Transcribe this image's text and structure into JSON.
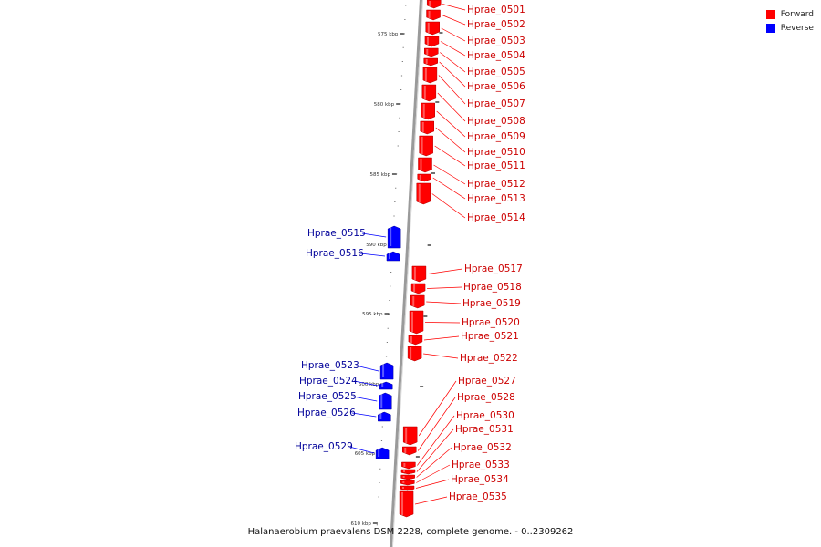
{
  "caption": "Halanaerobium praevalens DSM 2228, complete genome. - 0..2309262",
  "legend": [
    {
      "label": "Forward",
      "color": "#ff0000"
    },
    {
      "label": "Reverse",
      "color": "#0000ff"
    }
  ],
  "colors": {
    "forward": "#ff0000",
    "reverse": "#0000ff",
    "forward_label": "#cc0000",
    "reverse_label": "#000099",
    "backbone": "#888888"
  },
  "ruler": {
    "labels": [
      "575 kbp",
      "580 kbp",
      "585 kbp",
      "590 kbp",
      "595 kbp",
      "600 kbp",
      "605 kbp",
      "610 kbp"
    ]
  },
  "genes": [
    {
      "name": "Hprae_0501",
      "strand": "forward"
    },
    {
      "name": "Hprae_0502",
      "strand": "forward"
    },
    {
      "name": "Hprae_0503",
      "strand": "forward"
    },
    {
      "name": "Hprae_0504",
      "strand": "forward"
    },
    {
      "name": "Hprae_0505",
      "strand": "forward"
    },
    {
      "name": "Hprae_0506",
      "strand": "forward"
    },
    {
      "name": "Hprae_0507",
      "strand": "forward"
    },
    {
      "name": "Hprae_0508",
      "strand": "forward"
    },
    {
      "name": "Hprae_0509",
      "strand": "forward"
    },
    {
      "name": "Hprae_0510",
      "strand": "forward"
    },
    {
      "name": "Hprae_0511",
      "strand": "forward"
    },
    {
      "name": "Hprae_0512",
      "strand": "forward"
    },
    {
      "name": "Hprae_0513",
      "strand": "forward"
    },
    {
      "name": "Hprae_0514",
      "strand": "forward"
    },
    {
      "name": "Hprae_0515",
      "strand": "reverse"
    },
    {
      "name": "Hprae_0516",
      "strand": "reverse"
    },
    {
      "name": "Hprae_0517",
      "strand": "forward"
    },
    {
      "name": "Hprae_0518",
      "strand": "forward"
    },
    {
      "name": "Hprae_0519",
      "strand": "forward"
    },
    {
      "name": "Hprae_0520",
      "strand": "forward"
    },
    {
      "name": "Hprae_0521",
      "strand": "forward"
    },
    {
      "name": "Hprae_0522",
      "strand": "forward"
    },
    {
      "name": "Hprae_0523",
      "strand": "reverse"
    },
    {
      "name": "Hprae_0524",
      "strand": "reverse"
    },
    {
      "name": "Hprae_0525",
      "strand": "reverse"
    },
    {
      "name": "Hprae_0526",
      "strand": "reverse"
    },
    {
      "name": "Hprae_0527",
      "strand": "forward"
    },
    {
      "name": "Hprae_0528",
      "strand": "forward"
    },
    {
      "name": "Hprae_0529",
      "strand": "reverse"
    },
    {
      "name": "Hprae_0530",
      "strand": "forward"
    },
    {
      "name": "Hprae_0531",
      "strand": "forward"
    },
    {
      "name": "Hprae_0532",
      "strand": "forward"
    },
    {
      "name": "Hprae_0533",
      "strand": "forward"
    },
    {
      "name": "Hprae_0534",
      "strand": "forward"
    },
    {
      "name": "Hprae_0535",
      "strand": "forward"
    }
  ]
}
